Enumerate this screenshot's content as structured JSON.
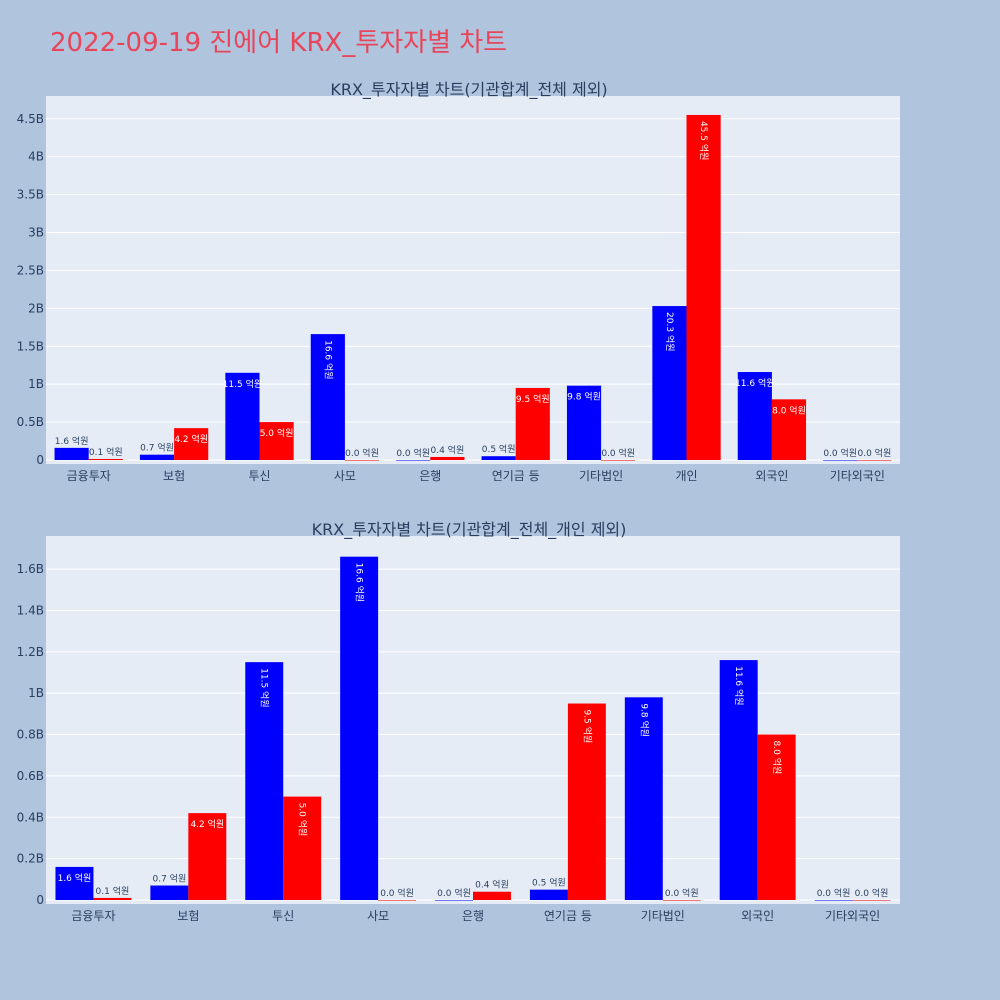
{
  "page": {
    "title": "2022-09-19 진에어 KRX_투자자별 차트"
  },
  "colors": {
    "buy": "#0000ff",
    "sell": "#ff0000",
    "plot_bg": "#e5ecf6",
    "paper_bg": "#b0c4de"
  },
  "label_unit": "억원",
  "chart_data": [
    {
      "type": "bar",
      "title": "KRX_투자자별 차트(기관합계_전체 제외)",
      "categories": [
        "금융투자",
        "보험",
        "투신",
        "사모",
        "은행",
        "연기금 등",
        "기타법인",
        "개인",
        "외국인",
        "기타외국인"
      ],
      "series": [
        {
          "values": [
            160000000,
            70000000,
            1150000000,
            1660000000,
            0,
            50000000,
            980000000,
            2030000000,
            1160000000,
            0
          ]
        },
        {
          "values": [
            10000000,
            420000000,
            500000000,
            0,
            40000000,
            950000000,
            0,
            4550000000,
            800000000,
            0
          ]
        }
      ],
      "ylim": [
        0,
        4800000000
      ],
      "yticks": [
        0,
        500000000,
        1000000000,
        1500000000,
        2000000000,
        2500000000,
        3000000000,
        3500000000,
        4000000000,
        4500000000
      ],
      "ytick_labels": [
        "0",
        "0.5B",
        "1B",
        "1.5B",
        "2B",
        "2.5B",
        "3B",
        "3.5B",
        "4B",
        "4.5B"
      ],
      "grid": true,
      "legend": "none"
    },
    {
      "type": "bar",
      "title": "KRX_투자자별 차트(기관합계_전체_개인 제외)",
      "categories": [
        "금융투자",
        "보험",
        "투신",
        "사모",
        "은행",
        "연기금 등",
        "기타법인",
        "외국인",
        "기타외국인"
      ],
      "series": [
        {
          "values": [
            160000000,
            70000000,
            1150000000,
            1660000000,
            0,
            50000000,
            980000000,
            1160000000,
            0
          ]
        },
        {
          "values": [
            10000000,
            420000000,
            500000000,
            0,
            40000000,
            950000000,
            0,
            800000000,
            0
          ]
        }
      ],
      "ylim": [
        0,
        1760000000
      ],
      "yticks": [
        0,
        200000000,
        400000000,
        600000000,
        800000000,
        1000000000,
        1200000000,
        1400000000,
        1600000000
      ],
      "ytick_labels": [
        "0",
        "0.2B",
        "0.4B",
        "0.6B",
        "0.8B",
        "1B",
        "1.2B",
        "1.4B",
        "1.6B"
      ],
      "grid": true,
      "legend": "none"
    }
  ]
}
